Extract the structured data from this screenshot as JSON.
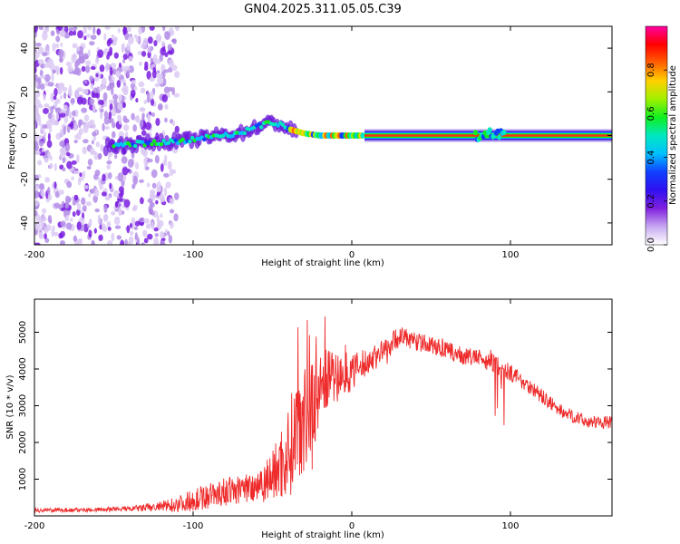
{
  "title": "GN04.2025.311.05.05.C39",
  "colors": {
    "snr_line": "#ee2a2a",
    "background": "#ffffff",
    "axis": "#000000"
  },
  "chart_data": [
    {
      "type": "heatmap",
      "name": "spectrogram",
      "xlabel": "Height of straight line (km)",
      "ylabel": "Frequency (Hz)",
      "xlim": [
        -200,
        164
      ],
      "ylim": [
        -50,
        50
      ],
      "xticks": [
        -200,
        -100,
        0,
        100
      ],
      "yticks": [
        -40,
        -20,
        0,
        20,
        40
      ],
      "colorbar": {
        "label": "Normalized spectral amplitude",
        "range": [
          0,
          1
        ],
        "ticks": [
          0.0,
          0.2,
          0.4,
          0.6,
          0.8
        ],
        "tick_labels": [
          "0.0",
          "0.2",
          "0.4",
          "0.6",
          "0.8"
        ],
        "colormap": [
          "#ffffff",
          "#c8a8f0",
          "#8020e0",
          "#3010f0",
          "#1040ff",
          "#00c0ff",
          "#00e8c0",
          "#10f020",
          "#a0f000",
          "#ffd000",
          "#ff6000",
          "#ff0000",
          "#ff00a0"
        ]
      },
      "ridge": {
        "heights": [
          -155,
          -140,
          -120,
          -100,
          -85,
          -70,
          -60,
          -50,
          -45,
          -40,
          -30,
          -20,
          -10,
          0,
          10,
          80,
          85,
          90,
          95,
          164
        ],
        "freqs": [
          -5,
          -4,
          -3,
          -2,
          0,
          1,
          4,
          6,
          5,
          3,
          1,
          0,
          0,
          0,
          0,
          0,
          2,
          0,
          1,
          0
        ]
      },
      "scatter_region": [
        -200,
        -110
      ]
    },
    {
      "type": "line",
      "name": "snr",
      "xlabel": "Height of straight line (km)",
      "ylabel": "SNR (10 * v/v)",
      "xlim": [
        -200,
        164
      ],
      "ylim": [
        0,
        5900
      ],
      "xticks": [
        -200,
        -100,
        0,
        100
      ],
      "yticks": [
        1000,
        2000,
        3000,
        4000,
        5000
      ],
      "series": [
        {
          "name": "SNR",
          "x": [
            -200,
            -180,
            -160,
            -140,
            -120,
            -110,
            -100,
            -90,
            -80,
            -70,
            -60,
            -50,
            -40,
            -35,
            -30,
            -28,
            -25,
            -20,
            -15,
            -10,
            -5,
            0,
            10,
            20,
            30,
            40,
            50,
            60,
            70,
            80,
            90,
            100,
            110,
            120,
            130,
            140,
            150,
            164
          ],
          "y": [
            150,
            160,
            170,
            190,
            250,
            320,
            430,
            550,
            650,
            720,
            850,
            1100,
            1700,
            2400,
            3000,
            3300,
            3000,
            3500,
            3800,
            3700,
            3900,
            3900,
            4200,
            4500,
            4900,
            4750,
            4650,
            4500,
            4350,
            4300,
            4150,
            3900,
            3600,
            3250,
            2900,
            2700,
            2550,
            2550
          ],
          "noise": [
            60,
            60,
            60,
            70,
            150,
            220,
            300,
            360,
            380,
            400,
            500,
            700,
            1300,
            1500,
            1800,
            2200,
            1800,
            900,
            800,
            700,
            650,
            500,
            380,
            330,
            300,
            260,
            240,
            240,
            240,
            230,
            260,
            240,
            220,
            200,
            180,
            170,
            170,
            170
          ]
        }
      ]
    }
  ]
}
